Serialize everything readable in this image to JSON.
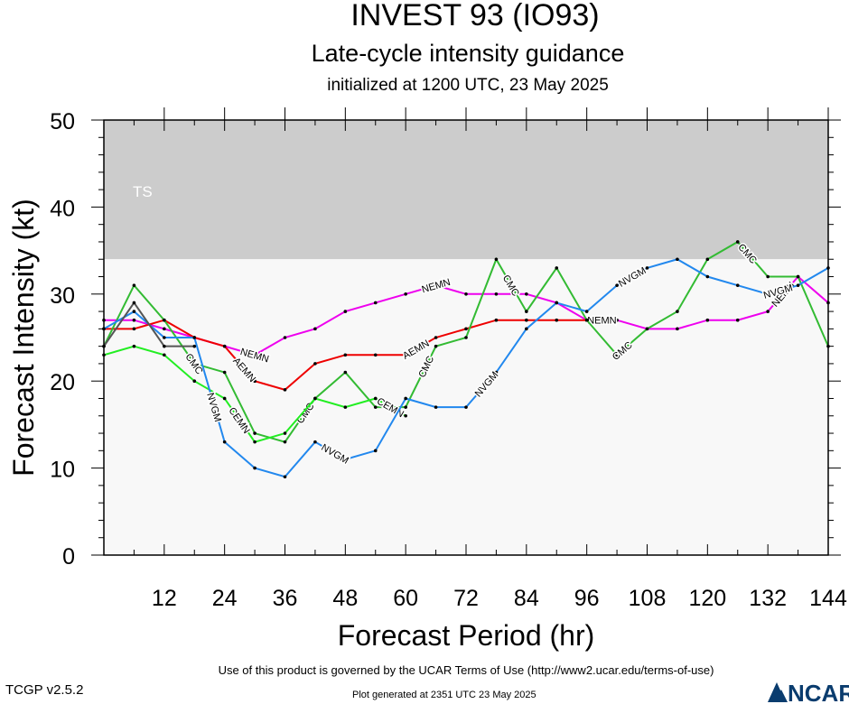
{
  "header": {
    "title": "INVEST 93 (IO93)",
    "subtitle": "Late-cycle intensity guidance",
    "subtitle2": "initialized at 1200 UTC, 23 May 2025"
  },
  "footer": {
    "terms": "Use of this product is governed by the UCAR Terms of Use (http://www2.ucar.edu/terms-of-use)",
    "version": "TCGP v2.5.2",
    "generated": "Plot generated at 2351 UTC   23 May 2025",
    "logo_text": "NCAR",
    "logo_color": "#0a3c6e",
    "logo_icon": "ncar-logo-icon"
  },
  "chart_data": {
    "type": "line",
    "title": "INVEST 93 (IO93)",
    "xlabel": "Forecast Period (hr)",
    "ylabel": "Forecast Intensity (kt)",
    "xlim": [
      0,
      144
    ],
    "ylim": [
      0,
      50
    ],
    "xticks": [
      12,
      24,
      36,
      48,
      60,
      72,
      84,
      96,
      108,
      120,
      132,
      144
    ],
    "yticks": [
      0,
      10,
      20,
      30,
      40,
      50
    ],
    "grid": false,
    "bands": [
      {
        "label": "TS",
        "from": 34,
        "to": 50,
        "color": "#cccccc"
      },
      {
        "label": "",
        "from": 0,
        "to": 34,
        "color": "#f8f8f8"
      }
    ],
    "series": [
      {
        "name": "NEMN",
        "color": "#ee00ee",
        "x": [
          0,
          6,
          12,
          18,
          24,
          30,
          36,
          42,
          48,
          54,
          60,
          66,
          72,
          78,
          84,
          90,
          96,
          102,
          108,
          114,
          120,
          126,
          132,
          138,
          144
        ],
        "y": [
          27,
          27,
          26,
          25,
          24,
          23,
          25,
          26,
          28,
          29,
          30,
          31,
          30,
          30,
          30,
          29,
          27,
          27,
          26,
          26,
          27,
          27,
          28,
          32,
          29
        ],
        "labels": [
          {
            "text": "NEMN",
            "x": 30
          },
          {
            "text": "NEMN",
            "x": 66
          },
          {
            "text": "NEMN",
            "x": 99
          },
          {
            "text": "NEMN",
            "x": 135
          }
        ]
      },
      {
        "name": "AEMN",
        "color": "#ee0000",
        "x": [
          0,
          6,
          12,
          18,
          24,
          30,
          36,
          42,
          48,
          54,
          60,
          66,
          72,
          78,
          84,
          90,
          96
        ],
        "y": [
          26,
          26,
          27,
          25,
          24,
          20,
          19,
          22,
          23,
          23,
          23,
          25,
          26,
          27,
          27,
          27,
          27
        ],
        "labels": [
          {
            "text": "AEMN",
            "x": 28
          },
          {
            "text": "AEMN",
            "x": 62
          }
        ]
      },
      {
        "name": "CMC",
        "color": "#33bb33",
        "x": [
          0,
          6,
          12,
          18,
          24,
          30,
          36,
          42,
          48,
          54,
          60,
          66,
          72,
          78,
          84,
          90,
          96,
          102,
          108,
          114,
          120,
          126,
          132,
          138,
          144
        ],
        "y": [
          24,
          31,
          27,
          22,
          21,
          14,
          13,
          18,
          21,
          17,
          17,
          24,
          25,
          34,
          28,
          33,
          27,
          23,
          26,
          28,
          34,
          36,
          32,
          32,
          24
        ],
        "labels": [
          {
            "text": "CMC",
            "x": 18
          },
          {
            "text": "CMC",
            "x": 40
          },
          {
            "text": "CMC",
            "x": 64
          },
          {
            "text": "CMC",
            "x": 81
          },
          {
            "text": "CMC",
            "x": 103
          },
          {
            "text": "CMC",
            "x": 128
          }
        ]
      },
      {
        "name": "CEMN",
        "color": "#22ee22",
        "x": [
          0,
          6,
          12,
          18,
          24,
          30,
          36,
          42,
          48,
          54,
          60
        ],
        "y": [
          23,
          24,
          23,
          20,
          18,
          13,
          14,
          18,
          17,
          18,
          16
        ],
        "labels": [
          {
            "text": "CEMN",
            "x": 27
          },
          {
            "text": "CEMN",
            "x": 57
          }
        ]
      },
      {
        "name": "NVGM",
        "color": "#2288ee",
        "x": [
          0,
          6,
          12,
          18,
          24,
          30,
          36,
          42,
          48,
          54,
          60,
          66,
          72,
          78,
          84,
          90,
          96,
          102,
          108,
          114,
          120,
          126,
          132,
          138,
          144
        ],
        "y": [
          26,
          28,
          25,
          25,
          13,
          10,
          9,
          13,
          11,
          12,
          18,
          17,
          17,
          21,
          26,
          29,
          28,
          31,
          33,
          34,
          32,
          31,
          30,
          31,
          33
        ],
        "labels": [
          {
            "text": "NVGM",
            "x": 22
          },
          {
            "text": "NVGM",
            "x": 46
          },
          {
            "text": "NVGM",
            "x": 76
          },
          {
            "text": "NVGM",
            "x": 105
          },
          {
            "text": "NVGM",
            "x": 134
          }
        ]
      },
      {
        "name": "",
        "color": "#555555",
        "x": [
          0,
          6,
          12,
          18
        ],
        "y": [
          24,
          29,
          24,
          24
        ],
        "labels": []
      }
    ]
  }
}
